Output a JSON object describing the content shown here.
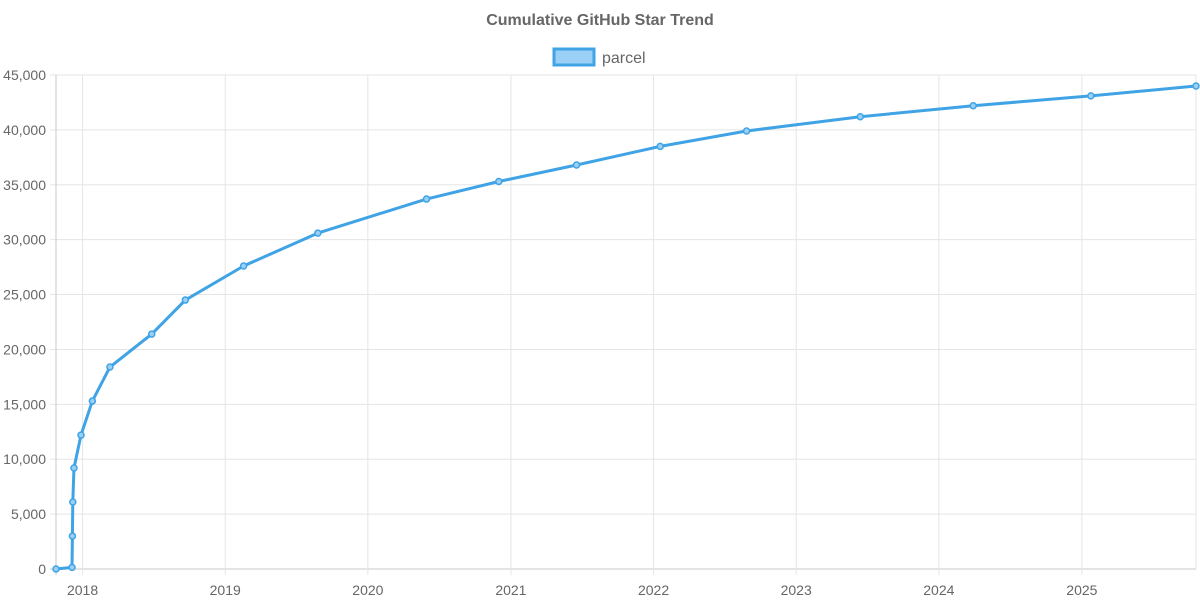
{
  "chart_data": {
    "type": "line",
    "title": "Cumulative GitHub Star Trend",
    "xlabel": "",
    "ylabel": "",
    "x_axis_kind": "date",
    "xlim": [
      "2017-10-25",
      "2025-10-20"
    ],
    "ylim": [
      0,
      45000
    ],
    "y_ticks": [
      0,
      5000,
      10000,
      15000,
      20000,
      25000,
      30000,
      35000,
      40000,
      45000
    ],
    "y_tick_labels": [
      "0",
      "5,000",
      "10,000",
      "15,000",
      "20,000",
      "25,000",
      "30,000",
      "35,000",
      "40,000",
      "45,000"
    ],
    "x_ticks": [
      "2018-01-01",
      "2019-01-01",
      "2020-01-01",
      "2021-01-01",
      "2022-01-01",
      "2023-01-01",
      "2024-01-01",
      "2025-01-01"
    ],
    "x_tick_labels": [
      "2018",
      "2019",
      "2020",
      "2021",
      "2022",
      "2023",
      "2024",
      "2025"
    ],
    "grid": true,
    "legend_position": "top-center",
    "series": [
      {
        "name": "parcel",
        "color": "#3fa3e5",
        "fill_color": "#9ad0f5",
        "points": [
          {
            "x": "2017-10-25",
            "y": 0
          },
          {
            "x": "2017-12-05",
            "y": 150
          },
          {
            "x": "2017-12-06",
            "y": 3000
          },
          {
            "x": "2017-12-07",
            "y": 6100
          },
          {
            "x": "2017-12-10",
            "y": 9200
          },
          {
            "x": "2017-12-28",
            "y": 12200
          },
          {
            "x": "2018-01-26",
            "y": 15300
          },
          {
            "x": "2018-03-12",
            "y": 18400
          },
          {
            "x": "2018-06-27",
            "y": 21400
          },
          {
            "x": "2018-09-21",
            "y": 24500
          },
          {
            "x": "2019-02-17",
            "y": 27600
          },
          {
            "x": "2019-08-26",
            "y": 30600
          },
          {
            "x": "2020-05-30",
            "y": 33700
          },
          {
            "x": "2020-12-01",
            "y": 35300
          },
          {
            "x": "2021-06-18",
            "y": 36800
          },
          {
            "x": "2022-01-18",
            "y": 38500
          },
          {
            "x": "2022-08-27",
            "y": 39900
          },
          {
            "x": "2023-06-14",
            "y": 41200
          },
          {
            "x": "2024-03-29",
            "y": 42200
          },
          {
            "x": "2025-01-24",
            "y": 43100
          },
          {
            "x": "2025-10-20",
            "y": 44000
          }
        ]
      }
    ]
  }
}
